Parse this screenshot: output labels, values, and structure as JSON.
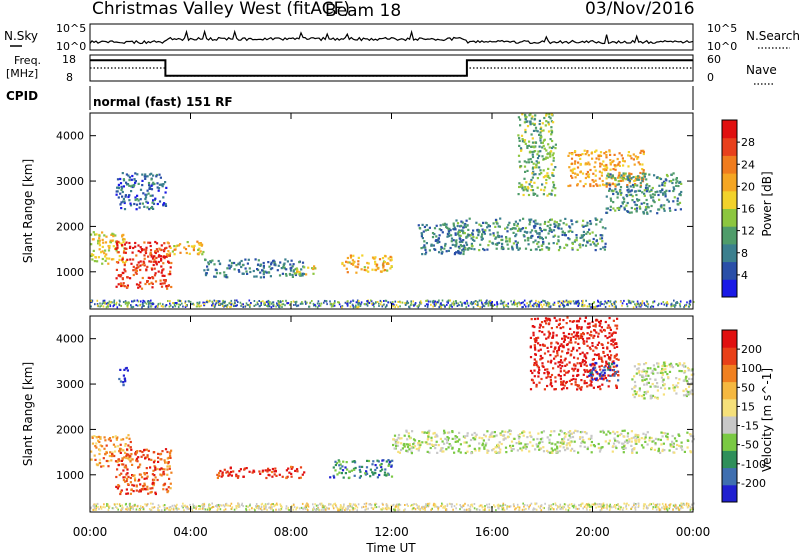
{
  "header": {
    "site": "Christmas Valley West (fitACF)",
    "beam": "Beam 18",
    "date": "03/Nov/2016"
  },
  "top_panels": {
    "nsky_label": "N.Sky",
    "nsky_scale_top": "10^5",
    "nsky_scale_bottom": "10^0",
    "nsearch_label": "N.Search",
    "nsearch_scale_top": "10^5",
    "nsearch_scale_bottom": "10^0",
    "freq_label": "Freq.",
    "freq_unit": "[MHz]",
    "freq_ticks": [
      "18",
      "8"
    ],
    "nave_label": "Nave",
    "nave_ticks": [
      "60",
      "0"
    ],
    "cpid_label": "CPID",
    "cpid_text": "normal (fast) 151 RF"
  },
  "chart_data": [
    {
      "type": "heatmap",
      "quantity": "power",
      "ylabel": "Slant Range [km]",
      "ylim": [
        180,
        4500
      ],
      "yticks": [
        1000,
        2000,
        3000,
        4000
      ],
      "colorbar": {
        "label": "Power [dB]",
        "ticks": [
          "4",
          "8",
          "12",
          "16",
          "20",
          "24",
          "28"
        ],
        "colors": [
          "#1a1ae6",
          "#2a4fa8",
          "#3b7f8e",
          "#4f9c6a",
          "#8cc63f",
          "#f2d22b",
          "#f5a623",
          "#f07c1e",
          "#e8401c",
          "#e01010"
        ]
      },
      "regions": [
        {
          "t": [
            0.0,
            1.4
          ],
          "r": [
            1200,
            1900
          ],
          "level": 0.55
        },
        {
          "t": [
            1.0,
            3.2
          ],
          "r": [
            650,
            1700
          ],
          "level": 0.9
        },
        {
          "t": [
            3.0,
            4.5
          ],
          "r": [
            1400,
            1700
          ],
          "level": 0.6
        },
        {
          "t": [
            4.5,
            8.5
          ],
          "r": [
            900,
            1300
          ],
          "level": 0.25
        },
        {
          "t": [
            8.0,
            9.0
          ],
          "r": [
            950,
            1150
          ],
          "level": 0.55
        },
        {
          "t": [
            10.0,
            12.0
          ],
          "r": [
            1000,
            1400
          ],
          "level": 0.6
        },
        {
          "t": [
            13.0,
            15.0
          ],
          "r": [
            1400,
            2100
          ],
          "level": 0.25
        },
        {
          "t": [
            14.5,
            20.5
          ],
          "r": [
            1500,
            2200
          ],
          "level": 0.3
        },
        {
          "t": [
            17.0,
            18.5
          ],
          "r": [
            2700,
            4500
          ],
          "level": 0.4
        },
        {
          "t": [
            19.0,
            22.0
          ],
          "r": [
            2900,
            3700
          ],
          "level": 0.65
        },
        {
          "t": [
            20.5,
            23.5
          ],
          "r": [
            2300,
            3200
          ],
          "level": 0.3
        },
        {
          "t": [
            1.0,
            3.0
          ],
          "r": [
            2400,
            3200
          ],
          "level": 0.2
        }
      ]
    },
    {
      "type": "heatmap",
      "quantity": "velocity",
      "ylabel": "Slant Range [km]",
      "ylim": [
        180,
        4500
      ],
      "yticks": [
        1000,
        2000,
        3000,
        4000
      ],
      "colorbar": {
        "label": "Velocity [m s^-1]",
        "ticks": [
          "200",
          "100",
          "50",
          "15",
          "-15",
          "-50",
          "-100",
          "-200"
        ],
        "colors": [
          "#2020d0",
          "#3f6fb0",
          "#2e8f5a",
          "#7ac943",
          "#c8c8c8",
          "#f5e07a",
          "#f5b840",
          "#f08020",
          "#e84018",
          "#e01010"
        ]
      },
      "regions": [
        {
          "t": [
            0.0,
            1.6
          ],
          "r": [
            1200,
            1900
          ],
          "level": 0.7
        },
        {
          "t": [
            1.0,
            3.2
          ],
          "r": [
            600,
            1600
          ],
          "level": 0.82
        },
        {
          "t": [
            5.0,
            8.5
          ],
          "r": [
            950,
            1200
          ],
          "level": 0.9
        },
        {
          "t": [
            9.5,
            12.0
          ],
          "r": [
            950,
            1350
          ],
          "level": 0.2
        },
        {
          "t": [
            1.1,
            1.5
          ],
          "r": [
            3000,
            3400
          ],
          "level": 0.05
        },
        {
          "t": [
            12.0,
            24.0
          ],
          "r": [
            1500,
            2000
          ],
          "level": 0.45
        },
        {
          "t": [
            17.5,
            21.0
          ],
          "r": [
            2900,
            4500
          ],
          "level": 0.95
        },
        {
          "t": [
            19.8,
            21.0
          ],
          "r": [
            3100,
            3500
          ],
          "level": 0.1
        },
        {
          "t": [
            21.5,
            24.0
          ],
          "r": [
            2700,
            3500
          ],
          "level": 0.45
        }
      ]
    }
  ],
  "x_axis": {
    "title": "Time UT",
    "tick_labels": [
      "00:00",
      "04:00",
      "08:00",
      "12:00",
      "16:00",
      "20:00",
      "00:00"
    ],
    "range_hours": [
      0,
      24
    ]
  },
  "freq_series": [
    {
      "from": 0,
      "to": 3,
      "value": 16
    },
    {
      "from": 3,
      "to": 15,
      "value": 10
    },
    {
      "from": 15,
      "to": 24,
      "value": 16
    }
  ]
}
